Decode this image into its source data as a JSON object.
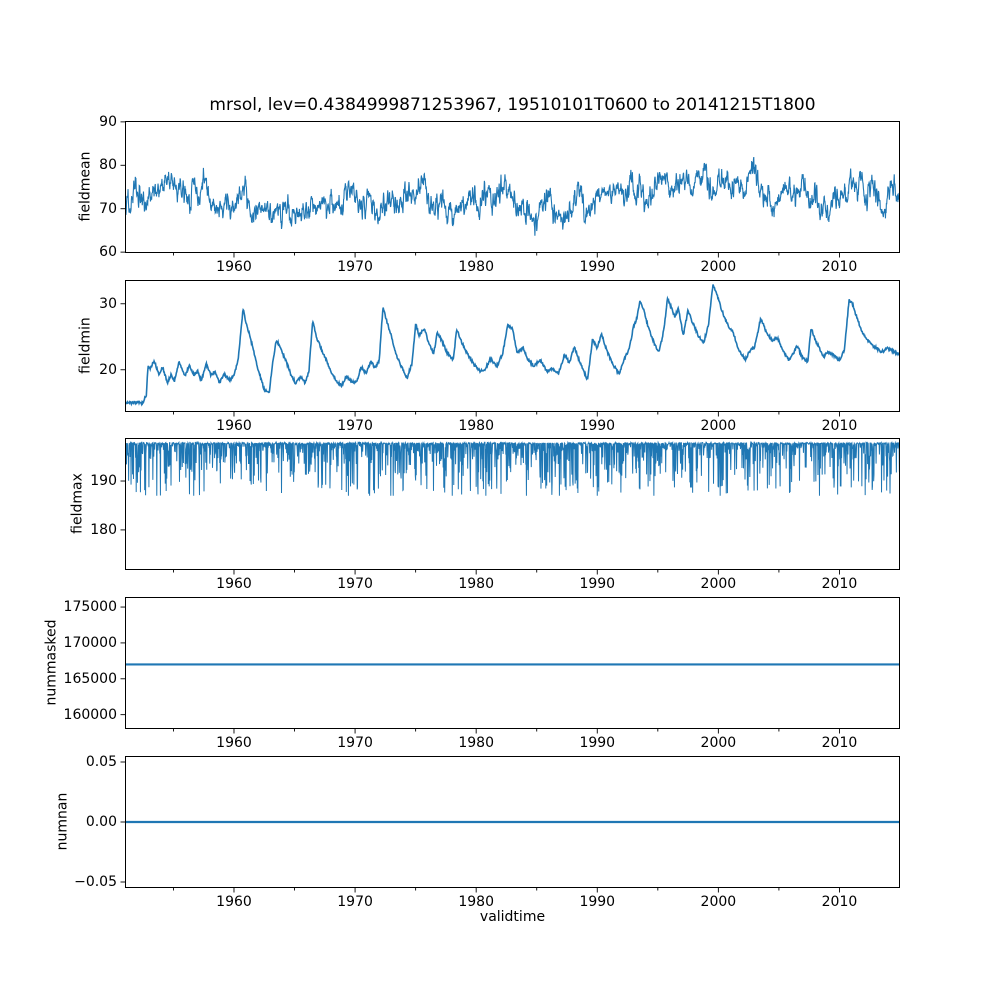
{
  "chart_data": {
    "type": "line",
    "title": "mrsol, lev=0.4384999871253967, 19510101T0600 to 20141215T1800",
    "xlabel": "validtime",
    "line_color": "#1f77b4",
    "axis_color": "#000000",
    "background": "#ffffff",
    "x_domain": [
      1951.0,
      2015.0
    ],
    "xticks": {
      "values": [
        1960,
        1970,
        1980,
        1990,
        2000,
        2010
      ],
      "labels": [
        "1960",
        "1970",
        "1980",
        "1990",
        "2000",
        "2010"
      ],
      "minor_values": [
        1955,
        1965,
        1975,
        1985,
        1995,
        2005
      ]
    },
    "subplots": [
      {
        "ylabel": "fieldmean",
        "ylim": [
          59.8,
          90.2
        ],
        "yticks": [
          {
            "v": 60,
            "label": "60"
          },
          {
            "v": 70,
            "label": "70"
          },
          {
            "v": 80,
            "label": "80"
          },
          {
            "v": 90,
            "label": "90"
          }
        ],
        "series": {
          "kind": "noisy",
          "step": 0.025,
          "seed": 1337,
          "clip": [
            61.2,
            89.0
          ],
          "noise_octaves": [
            {
              "node_step": 0.38,
              "amp": 3.4
            },
            {
              "node_step": 0.08,
              "amp": 2.6
            }
          ],
          "white_amp": 1.0,
          "anchors": [
            [
              1951,
              74
            ],
            [
              1952,
              72.5
            ],
            [
              1953,
              73
            ],
            [
              1954,
              74.5
            ],
            [
              1955,
              76
            ],
            [
              1956,
              74
            ],
            [
              1957,
              72
            ],
            [
              1958,
              74.5
            ],
            [
              1959,
              72
            ],
            [
              1960,
              71
            ],
            [
              1961,
              73.5
            ],
            [
              1962,
              70.5
            ],
            [
              1963,
              69.5
            ],
            [
              1964,
              71
            ],
            [
              1965,
              69
            ],
            [
              1966,
              73.5
            ],
            [
              1967,
              72
            ],
            [
              1968,
              71
            ],
            [
              1969,
              70.5
            ],
            [
              1970,
              72
            ],
            [
              1971,
              73.5
            ],
            [
              1972,
              72
            ],
            [
              1973,
              74.5
            ],
            [
              1974,
              71.5
            ],
            [
              1975,
              74
            ],
            [
              1976,
              75.5
            ],
            [
              1977,
              71
            ],
            [
              1978,
              70
            ],
            [
              1979,
              69.5
            ],
            [
              1980,
              71
            ],
            [
              1981,
              71.5
            ],
            [
              1982,
              74
            ],
            [
              1983,
              71
            ],
            [
              1984,
              69.5
            ],
            [
              1985,
              70
            ],
            [
              1986,
              70.5
            ],
            [
              1987,
              69.5
            ],
            [
              1988,
              71.5
            ],
            [
              1989,
              72
            ],
            [
              1990,
              71
            ],
            [
              1991,
              73
            ],
            [
              1992,
              73.5
            ],
            [
              1993,
              76
            ],
            [
              1994,
              74.5
            ],
            [
              1995,
              75.5
            ],
            [
              1996,
              75
            ],
            [
              1997,
              74.5
            ],
            [
              1998,
              76.5
            ],
            [
              1999,
              77.5
            ],
            [
              2000,
              76.5
            ],
            [
              2001,
              74
            ],
            [
              2002,
              75
            ],
            [
              2003,
              76.5
            ],
            [
              2004,
              73.5
            ],
            [
              2005,
              73
            ],
            [
              2006,
              74
            ],
            [
              2007,
              75.5
            ],
            [
              2008,
              72
            ],
            [
              2009,
              70
            ],
            [
              2010,
              74
            ],
            [
              2011,
              77
            ],
            [
              2012,
              73.5
            ],
            [
              2013,
              72
            ],
            [
              2014,
              73
            ],
            [
              2015,
              73
            ]
          ]
        }
      },
      {
        "ylabel": "fieldmin",
        "ylim": [
          13.6,
          33.6
        ],
        "yticks": [
          {
            "v": 20,
            "label": "20"
          },
          {
            "v": 30,
            "label": "30"
          }
        ],
        "series": {
          "kind": "anchored",
          "step": 0.04,
          "seed": 421,
          "jitter": 0.22,
          "anchors": [
            [
              1951.0,
              15.0
            ],
            [
              1952.55,
              15.0
            ],
            [
              1952.62,
              15.9
            ],
            [
              1952.75,
              15.8
            ],
            [
              1952.9,
              20.6
            ],
            [
              1953.1,
              20.2
            ],
            [
              1953.4,
              21.4
            ],
            [
              1953.8,
              19.4
            ],
            [
              1954.1,
              20.4
            ],
            [
              1954.5,
              18.0
            ],
            [
              1954.8,
              19.2
            ],
            [
              1955.1,
              18.3
            ],
            [
              1955.45,
              21.2
            ],
            [
              1955.7,
              20.0
            ],
            [
              1955.95,
              19.1
            ],
            [
              1956.3,
              20.6
            ],
            [
              1956.7,
              19.2
            ],
            [
              1957.0,
              19.9
            ],
            [
              1957.3,
              18.3
            ],
            [
              1957.7,
              20.9
            ],
            [
              1958.1,
              19.2
            ],
            [
              1958.45,
              19.8
            ],
            [
              1958.8,
              18.1
            ],
            [
              1959.2,
              19.4
            ],
            [
              1959.6,
              18.4
            ],
            [
              1960.0,
              19.1
            ],
            [
              1960.35,
              21.5
            ],
            [
              1960.75,
              29.3
            ],
            [
              1961.0,
              27.0
            ],
            [
              1961.3,
              25.2
            ],
            [
              1961.6,
              23.0
            ],
            [
              1962.0,
              20.0
            ],
            [
              1962.5,
              17.0
            ],
            [
              1962.9,
              16.5
            ],
            [
              1963.2,
              21.0
            ],
            [
              1963.5,
              24.6
            ],
            [
              1963.9,
              23.0
            ],
            [
              1964.3,
              21.3
            ],
            [
              1964.7,
              19.3
            ],
            [
              1965.1,
              17.9
            ],
            [
              1965.5,
              18.9
            ],
            [
              1965.9,
              18.0
            ],
            [
              1966.2,
              20.0
            ],
            [
              1966.5,
              27.6
            ],
            [
              1966.8,
              25.0
            ],
            [
              1967.2,
              23.2
            ],
            [
              1967.6,
              21.5
            ],
            [
              1968.0,
              19.8
            ],
            [
              1968.4,
              18.4
            ],
            [
              1968.9,
              17.6
            ],
            [
              1969.3,
              19.0
            ],
            [
              1969.7,
              18.2
            ],
            [
              1970.1,
              18.0
            ],
            [
              1970.5,
              20.5
            ],
            [
              1970.9,
              19.4
            ],
            [
              1971.3,
              21.2
            ],
            [
              1971.7,
              20.2
            ],
            [
              1972.0,
              21.5
            ],
            [
              1972.3,
              29.5
            ],
            [
              1972.6,
              27.5
            ],
            [
              1973.0,
              25.0
            ],
            [
              1973.4,
              22.3
            ],
            [
              1973.9,
              20.2
            ],
            [
              1974.3,
              18.8
            ],
            [
              1974.7,
              21.0
            ],
            [
              1975.0,
              26.8
            ],
            [
              1975.3,
              25.2
            ],
            [
              1975.7,
              26.3
            ],
            [
              1976.1,
              24.0
            ],
            [
              1976.5,
              22.5
            ],
            [
              1976.8,
              25.7
            ],
            [
              1977.2,
              24.2
            ],
            [
              1977.6,
              22.6
            ],
            [
              1978.1,
              21.5
            ],
            [
              1978.4,
              26.2
            ],
            [
              1978.8,
              24.2
            ],
            [
              1979.3,
              22.3
            ],
            [
              1979.8,
              20.8
            ],
            [
              1980.3,
              19.8
            ],
            [
              1980.7,
              20.0
            ],
            [
              1981.2,
              21.7
            ],
            [
              1981.7,
              20.5
            ],
            [
              1982.2,
              22.5
            ],
            [
              1982.6,
              26.8
            ],
            [
              1983.0,
              26.2
            ],
            [
              1983.4,
              22.5
            ],
            [
              1983.9,
              23.3
            ],
            [
              1984.3,
              21.4
            ],
            [
              1984.8,
              20.6
            ],
            [
              1985.3,
              21.5
            ],
            [
              1985.8,
              19.8
            ],
            [
              1986.3,
              20.1
            ],
            [
              1986.8,
              19.4
            ],
            [
              1987.3,
              22.3
            ],
            [
              1987.7,
              21.0
            ],
            [
              1988.1,
              23.5
            ],
            [
              1988.6,
              21.0
            ],
            [
              1989.2,
              18.4
            ],
            [
              1989.6,
              24.6
            ],
            [
              1990.0,
              23.3
            ],
            [
              1990.35,
              25.4
            ],
            [
              1990.8,
              22.8
            ],
            [
              1991.3,
              20.8
            ],
            [
              1991.8,
              19.4
            ],
            [
              1992.2,
              21.4
            ],
            [
              1992.6,
              23.0
            ],
            [
              1993.0,
              26.5
            ],
            [
              1993.3,
              28.0
            ],
            [
              1993.5,
              30.3
            ],
            [
              1993.8,
              29.3
            ],
            [
              1994.2,
              26.5
            ],
            [
              1994.7,
              24.0
            ],
            [
              1995.1,
              22.7
            ],
            [
              1995.5,
              26.0
            ],
            [
              1995.8,
              30.8
            ],
            [
              1996.1,
              29.5
            ],
            [
              1996.4,
              28.0
            ],
            [
              1996.7,
              29.3
            ],
            [
              1997.1,
              25.2
            ],
            [
              1997.5,
              29.0
            ],
            [
              1997.9,
              27.0
            ],
            [
              1998.4,
              25.0
            ],
            [
              1998.8,
              24.2
            ],
            [
              1999.2,
              27.0
            ],
            [
              1999.55,
              32.8
            ],
            [
              1999.8,
              32.0
            ],
            [
              2000.2,
              29.5
            ],
            [
              2000.7,
              27.0
            ],
            [
              2001.2,
              25.7
            ],
            [
              2001.7,
              23.0
            ],
            [
              2002.2,
              21.5
            ],
            [
              2002.6,
              22.8
            ],
            [
              2003.0,
              23.5
            ],
            [
              2003.5,
              27.8
            ],
            [
              2003.9,
              26.0
            ],
            [
              2004.4,
              24.5
            ],
            [
              2004.9,
              24.8
            ],
            [
              2005.3,
              23.0
            ],
            [
              2005.8,
              21.5
            ],
            [
              2006.2,
              22.5
            ],
            [
              2006.5,
              23.7
            ],
            [
              2006.9,
              22.0
            ],
            [
              2007.4,
              21.2
            ],
            [
              2007.65,
              26.4
            ],
            [
              2008.0,
              24.5
            ],
            [
              2008.7,
              22.0
            ],
            [
              2009.1,
              22.7
            ],
            [
              2009.5,
              22.2
            ],
            [
              2010.0,
              21.5
            ],
            [
              2010.4,
              23.0
            ],
            [
              2010.8,
              30.6
            ],
            [
              2011.1,
              29.9
            ],
            [
              2011.5,
              27.5
            ],
            [
              2012.0,
              25.3
            ],
            [
              2012.6,
              23.8
            ],
            [
              2013.1,
              23.2
            ],
            [
              2013.5,
              22.7
            ],
            [
              2014.0,
              23.3
            ],
            [
              2014.5,
              22.8
            ],
            [
              2015.0,
              22.3
            ]
          ]
        }
      },
      {
        "ylabel": "fieldmax",
        "ylim": [
          171.8,
          198.8
        ],
        "yticks": [
          {
            "v": 180,
            "label": "180"
          },
          {
            "v": 190,
            "label": "190"
          }
        ],
        "series": {
          "kind": "spikes_down",
          "step": 0.025,
          "seed": 9041,
          "baseline": 197.9,
          "top_jitter": 0.3,
          "max_depth": 11.0,
          "power": 6,
          "min_value": 187.0
        }
      },
      {
        "ylabel": "nummasked",
        "ylim": [
          158000,
          176400
        ],
        "yticks": [
          {
            "v": 160000,
            "label": "160000"
          },
          {
            "v": 165000,
            "label": "165000"
          },
          {
            "v": 170000,
            "label": "170000"
          },
          {
            "v": 175000,
            "label": "175000"
          }
        ],
        "series": {
          "kind": "constant",
          "value": 167000
        }
      },
      {
        "ylabel": "numnan",
        "ylim": [
          -0.055,
          0.055
        ],
        "yticks": [
          {
            "v": -0.05,
            "label": "−0.05"
          },
          {
            "v": 0.0,
            "label": "0.00"
          },
          {
            "v": 0.05,
            "label": "0.05"
          }
        ],
        "series": {
          "kind": "constant",
          "value": 0
        }
      }
    ]
  }
}
